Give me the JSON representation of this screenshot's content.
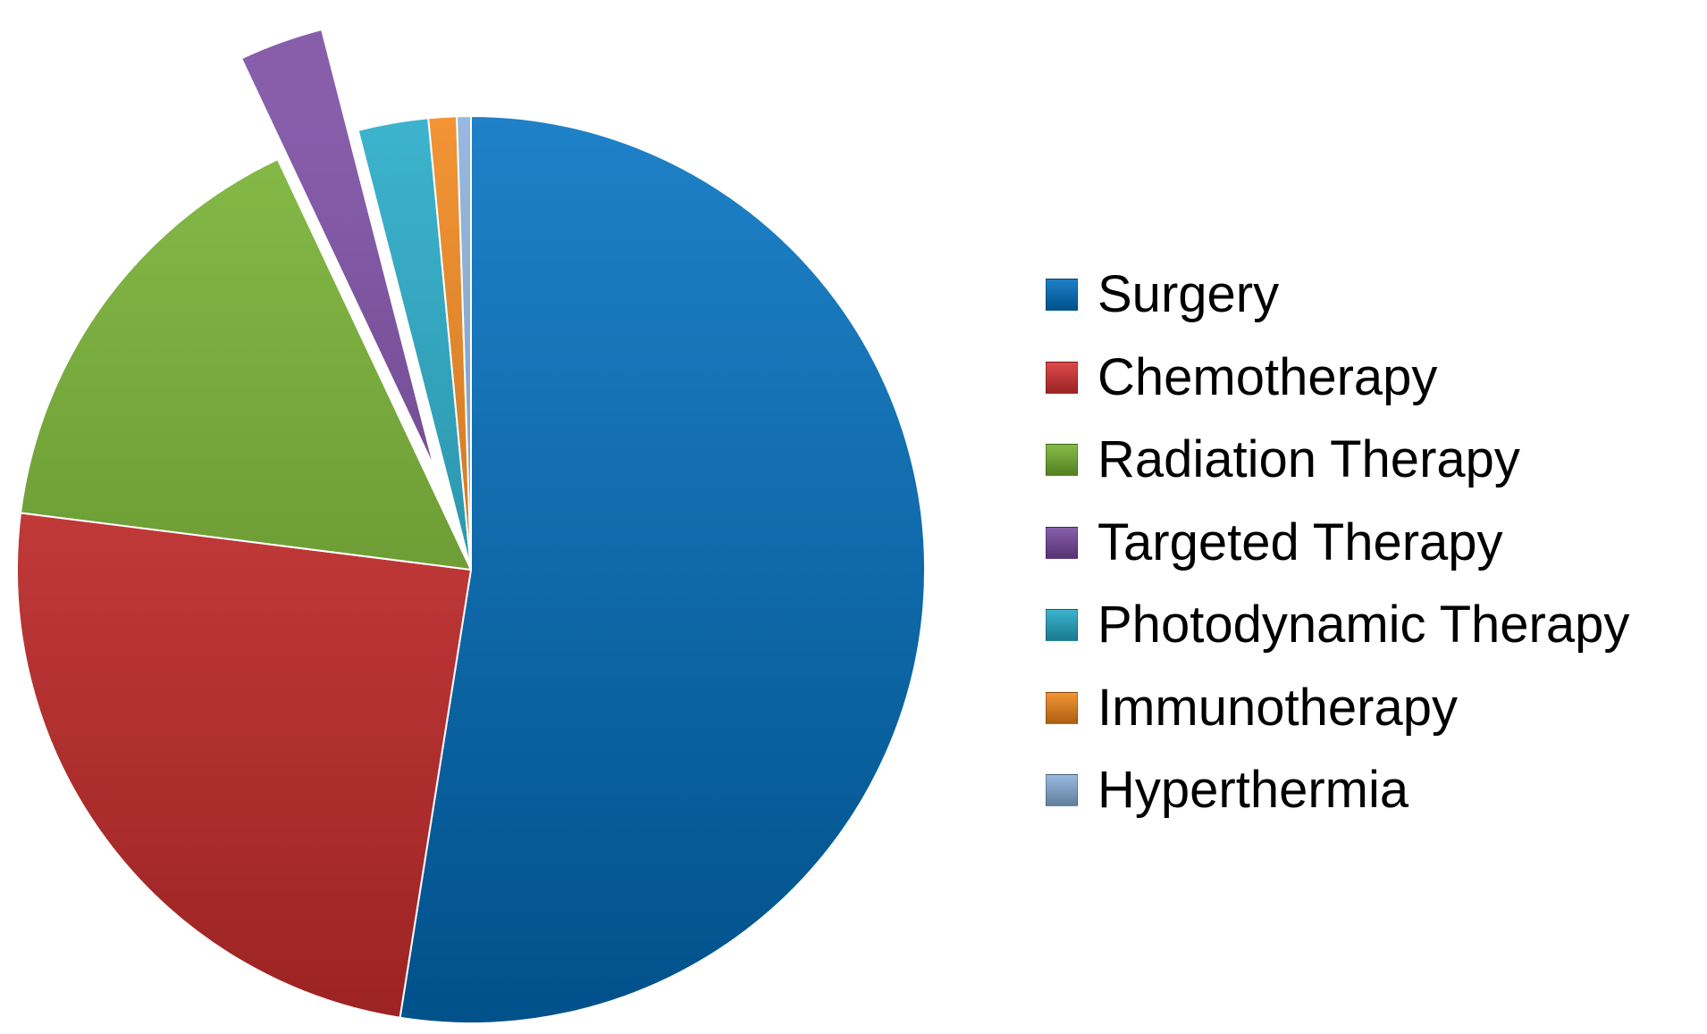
{
  "chart_data": {
    "type": "pie",
    "title": "",
    "categories": [
      "Surgery",
      "Chemotherapy",
      "Radiation Therapy",
      "Targeted Therapy",
      "Photodynamic Therapy",
      "Immunotherapy",
      "Hyperthermia"
    ],
    "values": [
      52.5,
      24.5,
      16.0,
      3.0,
      2.5,
      1.0,
      0.5
    ],
    "unit": "%",
    "colors": [
      "#0070c0",
      "#d83131",
      "#76b22f",
      "#7848a0",
      "#23a9c6",
      "#f08519",
      "#8ab0dc"
    ],
    "exploded": [
      "Targeted Therapy"
    ],
    "start_angle": "12 o'clock",
    "direction": "clockwise",
    "legend_position": "right"
  }
}
